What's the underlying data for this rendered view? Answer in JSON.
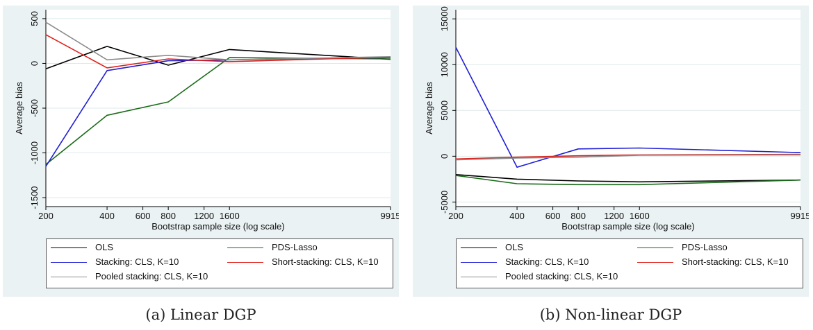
{
  "chart_data": [
    {
      "type": "line",
      "caption": "(a) Linear DGP",
      "xlabel": "Bootstrap sample size (log scale)",
      "ylabel": "Average bias",
      "x_scale": "log",
      "x": [
        200,
        400,
        800,
        1600,
        9915
      ],
      "x_ticks": [
        200,
        400,
        600,
        800,
        1200,
        1600,
        9915
      ],
      "x_tick_labels": [
        "200",
        "400",
        "600",
        "800",
        "1200",
        "1600",
        "9915"
      ],
      "ylim": [
        -1600,
        600
      ],
      "y_ticks": [
        -1500,
        -1000,
        -500,
        0,
        500
      ],
      "y_tick_labels": [
        "-1500",
        "-1000",
        "-500",
        "0",
        "500"
      ],
      "grid": true,
      "legend_position": "bottom",
      "series": [
        {
          "name": "OLS",
          "color": "#000000",
          "values": [
            -60,
            190,
            -20,
            155,
            45
          ]
        },
        {
          "name": "PDS-Lasso",
          "color": "#1a6b1a",
          "values": [
            -1130,
            -580,
            -430,
            65,
            50
          ]
        },
        {
          "name": "Stacking: CLS, K=10",
          "color": "#1f1fd6",
          "values": [
            -1150,
            -80,
            30,
            40,
            65
          ]
        },
        {
          "name": "Short-stacking: CLS, K=10",
          "color": "#e0201b",
          "values": [
            320,
            -50,
            50,
            20,
            70
          ]
        },
        {
          "name": "Pooled stacking: CLS, K=10",
          "color": "#8c8c8c",
          "values": [
            460,
            40,
            90,
            40,
            75
          ]
        }
      ]
    },
    {
      "type": "line",
      "caption": "(b) Non-linear DGP",
      "xlabel": "Bootstrap sample size (log scale)",
      "ylabel": "Average bias",
      "x_scale": "log",
      "x": [
        200,
        400,
        800,
        1600,
        9915
      ],
      "x_ticks": [
        200,
        400,
        600,
        800,
        1200,
        1600,
        9915
      ],
      "x_tick_labels": [
        "200",
        "400",
        "600",
        "800",
        "1200",
        "1600",
        "9915"
      ],
      "ylim": [
        -5500,
        16000
      ],
      "y_ticks": [
        -5000,
        0,
        5000,
        10000,
        15000
      ],
      "y_tick_labels": [
        "-5000",
        "0",
        "5000",
        "10000",
        "15000"
      ],
      "grid": true,
      "legend_position": "bottom",
      "series": [
        {
          "name": "OLS",
          "color": "#000000",
          "values": [
            -2000,
            -2500,
            -2700,
            -2800,
            -2600
          ]
        },
        {
          "name": "PDS-Lasso",
          "color": "#1a6b1a",
          "values": [
            -2100,
            -3000,
            -3100,
            -3100,
            -2600
          ]
        },
        {
          "name": "Stacking: CLS, K=10",
          "color": "#1f1fd6",
          "values": [
            11900,
            -1200,
            800,
            900,
            400
          ]
        },
        {
          "name": "Short-stacking: CLS, K=10",
          "color": "#e0201b",
          "values": [
            -300,
            -100,
            50,
            150,
            200
          ]
        },
        {
          "name": "Pooled stacking: CLS, K=10",
          "color": "#8c8c8c",
          "values": [
            -400,
            -200,
            -100,
            100,
            150
          ]
        }
      ]
    }
  ]
}
